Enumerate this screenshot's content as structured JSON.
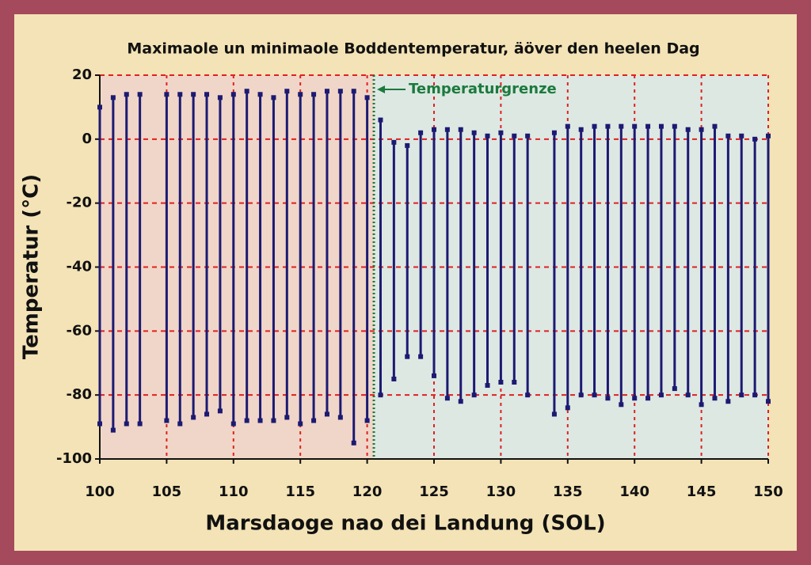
{
  "chart_data": {
    "type": "range",
    "title": "Maximaole un minimaole Boddentemperatur, äöver den heelen Dag",
    "x_label": "Marsdaoge nao dei Landung  (SOL)",
    "y_label": "Temperatur (°C)",
    "x": [
      100,
      101,
      102,
      103,
      105,
      106,
      107,
      108,
      109,
      110,
      111,
      112,
      113,
      114,
      115,
      116,
      117,
      118,
      119,
      120,
      121,
      122,
      123,
      124,
      125,
      126,
      127,
      128,
      129,
      130,
      131,
      132,
      134,
      135,
      136,
      137,
      138,
      139,
      140,
      141,
      142,
      143,
      144,
      145,
      146,
      147,
      148,
      149,
      150
    ],
    "high": [
      10,
      13,
      14,
      14,
      14,
      14,
      14,
      14,
      13,
      14,
      15,
      14,
      13,
      15,
      14,
      14,
      15,
      15,
      15,
      13,
      6,
      -1,
      -2,
      2,
      3,
      3,
      3,
      2,
      1,
      2,
      1,
      1,
      2,
      4,
      3,
      4,
      4,
      4,
      4,
      4,
      4,
      4,
      3,
      3,
      4,
      1,
      1,
      0,
      1
    ],
    "low": [
      -89,
      -91,
      -89,
      -89,
      -88,
      -89,
      -87,
      -86,
      -85,
      -89,
      -88,
      -88,
      -88,
      -87,
      -89,
      -88,
      -86,
      -87,
      -95,
      -88,
      -80,
      -75,
      -68,
      -68,
      -74,
      -81,
      -82,
      -80,
      -77,
      -76,
      -76,
      -80,
      -86,
      -84,
      -80,
      -80,
      -81,
      -83,
      -81,
      -81,
      -80,
      -78,
      -80,
      -83,
      -81,
      -82,
      -80,
      -80,
      -82
    ],
    "color": "#1c1a72",
    "xlim": [
      100,
      150
    ],
    "xticks": [
      100,
      105,
      110,
      115,
      120,
      125,
      130,
      135,
      140,
      145,
      150
    ],
    "ylim": [
      -100,
      20
    ],
    "yticks": [
      20,
      0,
      -20,
      -40,
      -60,
      -80,
      -100
    ],
    "grid": true,
    "grid_color": "#e02020",
    "regions": [
      {
        "from": 100,
        "to": 120.5,
        "color": "#f0d6c8"
      },
      {
        "from": 120.5,
        "to": 150,
        "color": "#dde8e3"
      }
    ],
    "annotation": {
      "text": "Temperaturgrenze",
      "x": 120.5,
      "color": "#1b7a3c"
    }
  }
}
